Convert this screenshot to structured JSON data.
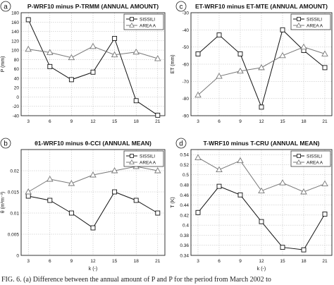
{
  "caption": "FIG. 6. (a) Difference between the annual amount of P        and P        for the period from March 2002 to",
  "markers": {
    "SISSILI": "square",
    "AREA A": "triangle"
  },
  "chart_data": [
    {
      "type": "line",
      "panel": "a",
      "title": "P-WRF10 minus P-TRMM (ANNUAL AMOUNT)",
      "xlabel": "",
      "ylabel": "P (mm)",
      "x": [
        3,
        6,
        9,
        12,
        15,
        18,
        21
      ],
      "xlim": [
        2,
        22
      ],
      "ylim": [
        -40,
        180
      ],
      "yticks": [
        -40,
        -20,
        0,
        20,
        40,
        60,
        80,
        100,
        120,
        140,
        160,
        180
      ],
      "grid": true,
      "legend": "top-right",
      "series": [
        {
          "name": "SISSILI",
          "values": [
            165,
            65,
            37,
            53,
            125,
            -8,
            -39
          ]
        },
        {
          "name": "AREA A",
          "values": [
            102,
            95,
            84,
            108,
            90,
            96,
            82
          ]
        }
      ]
    },
    {
      "type": "line",
      "panel": "c",
      "title": "ET-WRF10 minus ET-MTE (ANNUAL AMOUNT)",
      "xlabel": "",
      "ylabel": "ET (mm)",
      "x": [
        3,
        6,
        9,
        12,
        15,
        18,
        21
      ],
      "xlim": [
        2,
        22
      ],
      "ylim": [
        -90,
        -30
      ],
      "yticks": [
        -90,
        -80,
        -70,
        -60,
        -50,
        -40,
        -30
      ],
      "grid": true,
      "legend": "top-right",
      "series": [
        {
          "name": "SISSILI",
          "values": [
            -54,
            -43,
            -54,
            -85,
            -40,
            -52,
            -62
          ]
        },
        {
          "name": "AREA A",
          "values": [
            -78,
            -67,
            -64,
            -62,
            -55,
            -50,
            -54
          ]
        }
      ]
    },
    {
      "type": "line",
      "panel": "b",
      "title": "θ1-WRF10 minus θ-CCI (ANNUAL MEAN)",
      "xlabel": "k (-)",
      "ylabel": "θ (m³m⁻³)",
      "x": [
        3,
        6,
        9,
        12,
        15,
        18,
        21
      ],
      "xlim": [
        2,
        22
      ],
      "ylim": [
        0,
        0.025
      ],
      "yticks": [
        0,
        0.005,
        0.01,
        0.015,
        0.02
      ],
      "ytick_labels": [
        "0",
        "0.005",
        "0.01",
        "0.015",
        "0.02"
      ],
      "grid": true,
      "legend": "top-right",
      "series": [
        {
          "name": "SISSILI",
          "values": [
            0.014,
            0.013,
            0.01,
            0.0065,
            0.015,
            0.013,
            0.01
          ]
        },
        {
          "name": "AREA A",
          "values": [
            0.015,
            0.018,
            0.017,
            0.019,
            0.02,
            0.021,
            0.02
          ]
        }
      ]
    },
    {
      "type": "line",
      "panel": "d",
      "title": "T-WRF10 minus T-CRU (ANNUAL MEAN)",
      "xlabel": "k (-)",
      "ylabel": "T (K)",
      "x": [
        3,
        6,
        9,
        12,
        15,
        18,
        21
      ],
      "xlim": [
        2,
        22
      ],
      "ylim": [
        0.34,
        0.55
      ],
      "yticks": [
        0.34,
        0.36,
        0.38,
        0.4,
        0.42,
        0.44,
        0.46,
        0.48,
        0.5,
        0.52,
        0.54
      ],
      "ytick_labels": [
        "0.34",
        "0.36",
        "0.38",
        "0.4",
        "0.42",
        "0.44",
        "0.46",
        "0.48",
        "0.5",
        "0.52",
        "0.54"
      ],
      "grid": true,
      "legend": "top-right",
      "series": [
        {
          "name": "SISSILI",
          "values": [
            0.425,
            0.477,
            0.46,
            0.407,
            0.356,
            0.351,
            0.422
          ]
        },
        {
          "name": "AREA A",
          "values": [
            0.534,
            0.51,
            0.528,
            0.468,
            0.484,
            0.466,
            0.482
          ]
        }
      ]
    }
  ]
}
